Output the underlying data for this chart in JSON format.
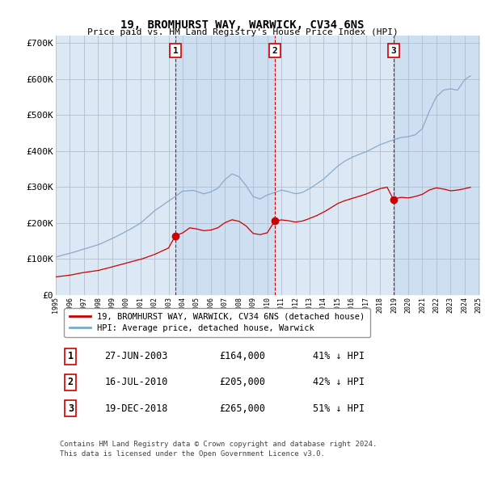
{
  "title": "19, BROMHURST WAY, WARWICK, CV34 6NS",
  "subtitle": "Price paid vs. HM Land Registry's House Price Index (HPI)",
  "bg_color_default": "#dce9f5",
  "bg_color_shaded": "#cddff0",
  "plot_bg_color": "#dce9f5",
  "y_ticks": [
    0,
    100000,
    200000,
    300000,
    400000,
    500000,
    600000,
    700000
  ],
  "y_labels": [
    "£0",
    "£100K",
    "£200K",
    "£300K",
    "£400K",
    "£500K",
    "£600K",
    "£700K"
  ],
  "sale_years": [
    2003.48,
    2010.54,
    2018.96
  ],
  "sale_values": [
    164000,
    205000,
    265000
  ],
  "sale_labels": [
    "1",
    "2",
    "3"
  ],
  "legend_entries": [
    {
      "label": "19, BROMHURST WAY, WARWICK, CV34 6NS (detached house)",
      "color": "#cc0000"
    },
    {
      "label": "HPI: Average price, detached house, Warwick",
      "color": "#7aabcc"
    }
  ],
  "table_rows": [
    {
      "num": "1",
      "date": "27-JUN-2003",
      "price": "£164,000",
      "hpi": "41% ↓ HPI"
    },
    {
      "num": "2",
      "date": "16-JUL-2010",
      "price": "£205,000",
      "hpi": "42% ↓ HPI"
    },
    {
      "num": "3",
      "date": "19-DEC-2018",
      "price": "£265,000",
      "hpi": "51% ↓ HPI"
    }
  ],
  "footer": "Contains HM Land Registry data © Crown copyright and database right 2024.\nThis data is licensed under the Open Government Licence v3.0.",
  "hpi_color": "#88aacc",
  "price_color": "#cc0000",
  "grid_color": "#b0bfd0",
  "sale_marker_color": "#cc0000",
  "sale_box_color": "#cc0000",
  "x_min": 1995,
  "x_max": 2025
}
